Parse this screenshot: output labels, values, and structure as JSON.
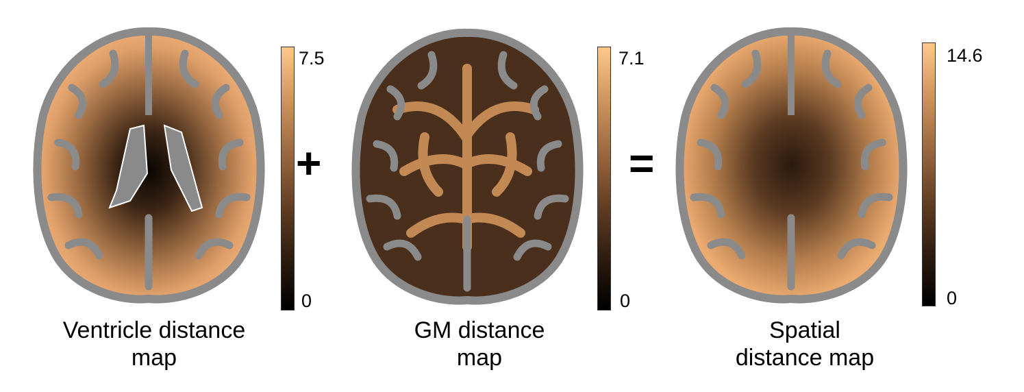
{
  "panels": [
    {
      "caption_line1": "Ventricle distance",
      "caption_line2": "map",
      "colorbar_max": "7.5",
      "colorbar_min": "0"
    },
    {
      "caption_line1": "GM distance",
      "caption_line2": "map",
      "colorbar_max": "7.1",
      "colorbar_min": "0"
    },
    {
      "caption_line1": "Spatial",
      "caption_line2": "distance map",
      "colorbar_max": "14.6",
      "colorbar_min": "0"
    }
  ],
  "operators": {
    "plus": "+",
    "equals": "="
  },
  "colors": {
    "colormap_low": "#000000",
    "colormap_high": "#ffc88a",
    "gray_matter": "#8a8a8a",
    "background": "#ffffff"
  }
}
